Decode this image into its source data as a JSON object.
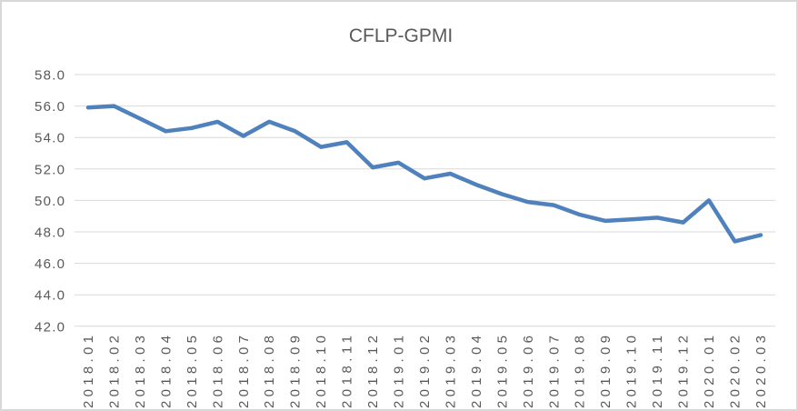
{
  "chart_data": {
    "type": "line",
    "title": "CFLP-GPMI",
    "xlabel": "",
    "ylabel": "",
    "grid": "horizontal",
    "legend": "none",
    "x_label_rotation": -90,
    "ylim": [
      42.0,
      58.0
    ],
    "ytick_step": 2.0,
    "ytick_labels": [
      "58.0",
      "56.0",
      "54.0",
      "52.0",
      "50.0",
      "48.0",
      "46.0",
      "44.0",
      "42.0"
    ],
    "categories": [
      "2018.01",
      "2018.02",
      "2018.03",
      "2018.04",
      "2018.05",
      "2018.06",
      "2018.07",
      "2018.08",
      "2018.09",
      "2018.10",
      "2018.11",
      "2018.12",
      "2019.01",
      "2019.02",
      "2019.03",
      "2019.04",
      "2019.05",
      "2019.06",
      "2019.07",
      "2019.08",
      "2019.09",
      "2019.10",
      "2019.11",
      "2019.12",
      "2020.01",
      "2020.02",
      "2020.03"
    ],
    "series": [
      {
        "name": "CFLP-GPMI",
        "values": [
          55.9,
          56.0,
          55.2,
          54.4,
          54.6,
          55.0,
          54.1,
          55.0,
          54.4,
          53.4,
          53.7,
          52.1,
          52.4,
          51.4,
          51.7,
          51.0,
          50.4,
          49.9,
          49.7,
          49.1,
          48.7,
          48.8,
          48.9,
          48.6,
          50.0,
          47.4,
          47.8
        ]
      }
    ],
    "colors": {
      "line": "#4F81BD",
      "gridline": "#D9D9D9",
      "text": "#595959",
      "frame_border": "#D8D8D8",
      "background": "#FFFFFF"
    }
  }
}
